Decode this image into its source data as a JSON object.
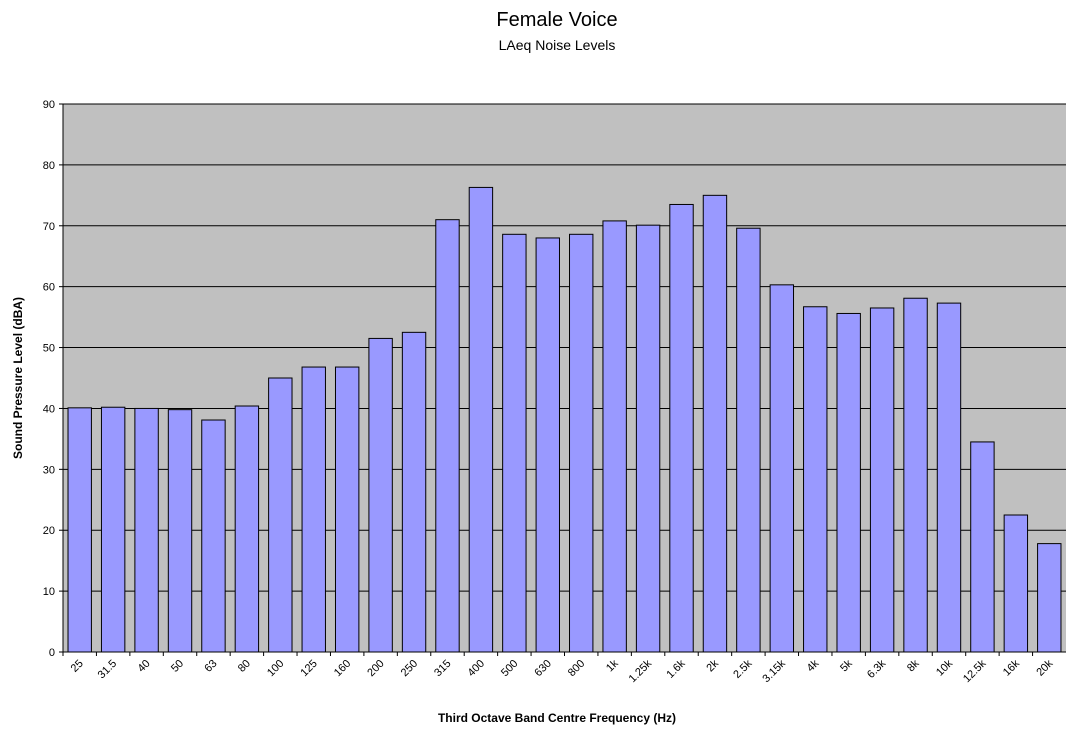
{
  "chart_data": {
    "type": "bar",
    "title": "Female Voice",
    "subtitle": "LAeq Noise Levels",
    "x_label": "Third Octave Band Centre Frequency (Hz)",
    "y_label": "Sound Pressure Level (dBA)",
    "categories": [
      "25",
      "31.5",
      "40",
      "50",
      "63",
      "80",
      "100",
      "125",
      "160",
      "200",
      "250",
      "315",
      "400",
      "500",
      "630",
      "800",
      "1k",
      "1.25k",
      "1.6k",
      "2k",
      "2.5k",
      "3.15k",
      "4k",
      "5k",
      "6.3k",
      "8k",
      "10k",
      "12.5k",
      "16k",
      "20k"
    ],
    "values": [
      40.1,
      40.2,
      40.0,
      39.8,
      38.1,
      40.4,
      45.0,
      46.8,
      46.8,
      51.5,
      52.5,
      71.0,
      76.3,
      68.6,
      68.0,
      68.6,
      70.8,
      70.1,
      73.5,
      75.0,
      69.6,
      60.3,
      56.7,
      55.6,
      56.5,
      58.1,
      57.3,
      34.5,
      22.5,
      17.8
    ],
    "color": "#9999ff",
    "plot_background": "#c0c0c0",
    "ylim": [
      0,
      90
    ],
    "yticks": [
      0,
      10,
      20,
      30,
      40,
      50,
      60,
      70,
      80,
      90
    ],
    "grid": true
  }
}
